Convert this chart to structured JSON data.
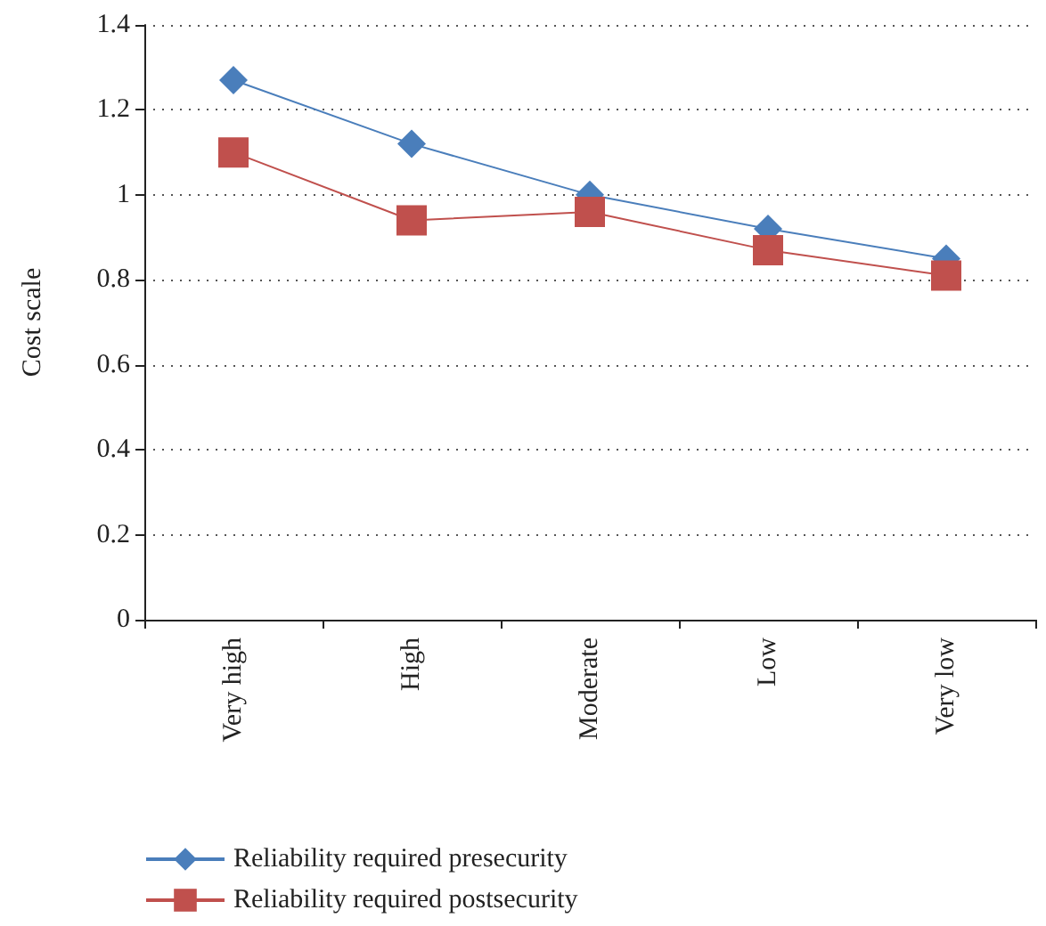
{
  "chart_data": {
    "type": "line",
    "ylabel": "Cost scale",
    "categories": [
      "Very high",
      "High",
      "Moderate",
      "Low",
      "Very low"
    ],
    "series": [
      {
        "name": "Reliability required presecurity",
        "color": "#4a7ebb",
        "marker": "diamond",
        "values": [
          1.27,
          1.12,
          1.0,
          0.92,
          0.85
        ]
      },
      {
        "name": "Reliability required postsecurity",
        "color": "#c0504d",
        "marker": "square",
        "values": [
          1.1,
          0.94,
          0.96,
          0.87,
          0.81
        ]
      }
    ],
    "ylim": [
      0,
      1.4
    ],
    "yticks": [
      0,
      0.2,
      0.4,
      0.6,
      0.8,
      1,
      1.2,
      1.4
    ],
    "grid": "y",
    "legend": "bottom",
    "line_style": "solid"
  }
}
